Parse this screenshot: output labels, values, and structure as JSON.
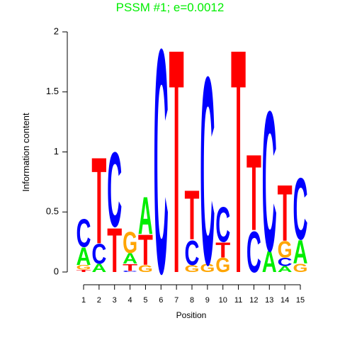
{
  "chart_data": {
    "type": "logo",
    "title": "PSSM #1; e=0.0012",
    "x_label": "Position",
    "y_label": "Information content",
    "categories": [
      "1",
      "2",
      "3",
      "4",
      "5",
      "6",
      "7",
      "8",
      "9",
      "10",
      "11",
      "12",
      "13",
      "14",
      "15"
    ],
    "ylim": [
      0,
      2
    ],
    "yticks": [
      0,
      0.5,
      1,
      1.5,
      2
    ],
    "colors": {
      "A": "#00ee00",
      "C": "#0000ff",
      "G": "#ffa500",
      "T": "#ff0000"
    },
    "title_color": "#00ee00",
    "stacks": [
      {
        "letters": [
          "T",
          "G",
          "A",
          "C"
        ],
        "values": [
          0.02,
          0.04,
          0.15,
          0.24
        ]
      },
      {
        "letters": [
          "A",
          "C",
          "T"
        ],
        "values": [
          0.07,
          0.17,
          0.74
        ]
      },
      {
        "letters": [
          "T",
          "C"
        ],
        "values": [
          0.38,
          0.64
        ]
      },
      {
        "letters": [
          "C",
          "T",
          "A",
          "G"
        ],
        "values": [
          0.01,
          0.06,
          0.09,
          0.18
        ]
      },
      {
        "letters": [
          "G",
          "T",
          "A"
        ],
        "values": [
          0.06,
          0.26,
          0.32
        ]
      },
      {
        "letters": [
          "C"
        ],
        "values": [
          1.92
        ]
      },
      {
        "letters": [
          "T"
        ],
        "values": [
          1.92
        ]
      },
      {
        "letters": [
          "G",
          "C",
          "T"
        ],
        "values": [
          0.06,
          0.21,
          0.42
        ]
      },
      {
        "letters": [
          "G",
          "C"
        ],
        "values": [
          0.07,
          1.61
        ]
      },
      {
        "letters": [
          "G",
          "T",
          "C"
        ],
        "values": [
          0.12,
          0.13,
          0.3
        ]
      },
      {
        "letters": [
          "T"
        ],
        "values": [
          1.92
        ]
      },
      {
        "letters": [
          "C",
          "T"
        ],
        "values": [
          0.35,
          0.65
        ]
      },
      {
        "letters": [
          "A",
          "C"
        ],
        "values": [
          0.18,
          1.2
        ]
      },
      {
        "letters": [
          "A",
          "C",
          "G",
          "T"
        ],
        "values": [
          0.05,
          0.07,
          0.14,
          0.48
        ]
      },
      {
        "letters": [
          "G",
          "A",
          "C"
        ],
        "values": [
          0.07,
          0.2,
          0.53
        ]
      }
    ]
  }
}
